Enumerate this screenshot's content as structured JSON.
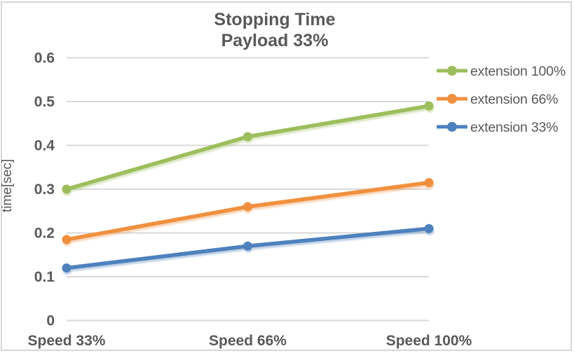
{
  "window": {
    "background": "#ffffff",
    "border_color": "#d6d6d6"
  },
  "chart_data": {
    "type": "line",
    "title": "Stopping Time",
    "subtitle": "Payload 33%",
    "ylabel": "time[sec]",
    "xlabel": "",
    "categories": [
      "Speed 33%",
      "Speed 66%",
      "Speed 100%"
    ],
    "series": [
      {
        "name": "extension 100%",
        "color": "#9CBE5C",
        "values": [
          0.3,
          0.42,
          0.49
        ]
      },
      {
        "name": "extension 66%",
        "color": "#F0903F",
        "values": [
          0.185,
          0.26,
          0.315
        ]
      },
      {
        "name": "extension 33%",
        "color": "#4E81BD",
        "values": [
          0.12,
          0.17,
          0.21
        ]
      }
    ],
    "ylim": [
      0,
      0.6
    ],
    "ytick_step": 0.1,
    "ytick_labels": [
      "0",
      "0.1",
      "0.2",
      "0.3",
      "0.4",
      "0.5",
      "0.6"
    ],
    "grid": true,
    "grid_color": "#D9D9D9",
    "text_color": "#595959",
    "legend_position": "right",
    "marker": "circle"
  }
}
